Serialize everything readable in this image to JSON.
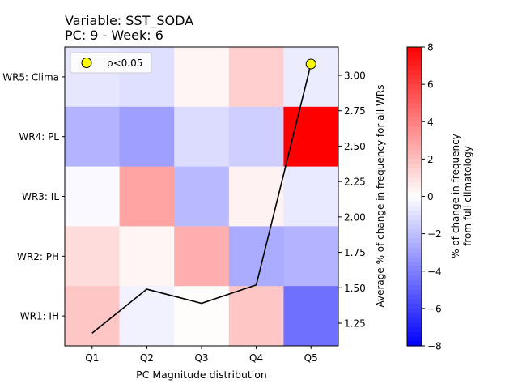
{
  "chart_data": {
    "type": "heatmap",
    "title_line1": "Variable: SST_SODA",
    "title_line2": "PC: 9 - Week: 6",
    "xlabel": "PC Magnitude distribution",
    "y2label": "Average % of change in frequency for all WRs",
    "x_categories": [
      "Q1",
      "Q2",
      "Q3",
      "Q4",
      "Q5"
    ],
    "y_categories": [
      "WR5: Clima",
      "WR4: PL",
      "WR3: IL",
      "WR2: PH",
      "WR1: IH"
    ],
    "values": [
      [
        -0.8,
        -1.0,
        0.3,
        1.5,
        -0.6
      ],
      [
        -2.4,
        -3.0,
        -1.1,
        -1.5,
        8.0
      ],
      [
        -0.2,
        2.9,
        -2.2,
        0.4,
        -0.7
      ],
      [
        1.1,
        0.3,
        2.5,
        -2.6,
        -2.4
      ],
      [
        1.8,
        -0.4,
        0.1,
        1.8,
        -4.5
      ]
    ],
    "colorbar": {
      "label_line1": "% of change in frequency",
      "label_line2": "from full climatology",
      "min": -8,
      "max": 8,
      "ticks": [
        -8,
        -6,
        -4,
        -2,
        0,
        2,
        4,
        6,
        8
      ],
      "tick_labels": [
        "−8",
        "−6",
        "−4",
        "−2",
        "0",
        "2",
        "4",
        "6",
        "8"
      ],
      "colormap": "bwr"
    },
    "line": {
      "color": "#000000",
      "x": [
        "Q1",
        "Q2",
        "Q3",
        "Q4",
        "Q5"
      ],
      "y": [
        1.18,
        1.49,
        1.39,
        1.52,
        3.08
      ]
    },
    "y2": {
      "min": 1.09,
      "max": 3.2,
      "ticks": [
        1.25,
        1.5,
        1.75,
        2.0,
        2.25,
        2.5,
        2.75,
        3.0
      ],
      "tick_labels": [
        "1.25",
        "1.50",
        "1.75",
        "2.00",
        "2.25",
        "2.50",
        "2.75",
        "3.00"
      ]
    },
    "significance": {
      "legend_label": "p<0.05",
      "marker_color": "#ffff00",
      "points": [
        {
          "x": "Q5",
          "y": 3.08
        }
      ]
    },
    "legend_position": "upper-left",
    "grid": false
  }
}
